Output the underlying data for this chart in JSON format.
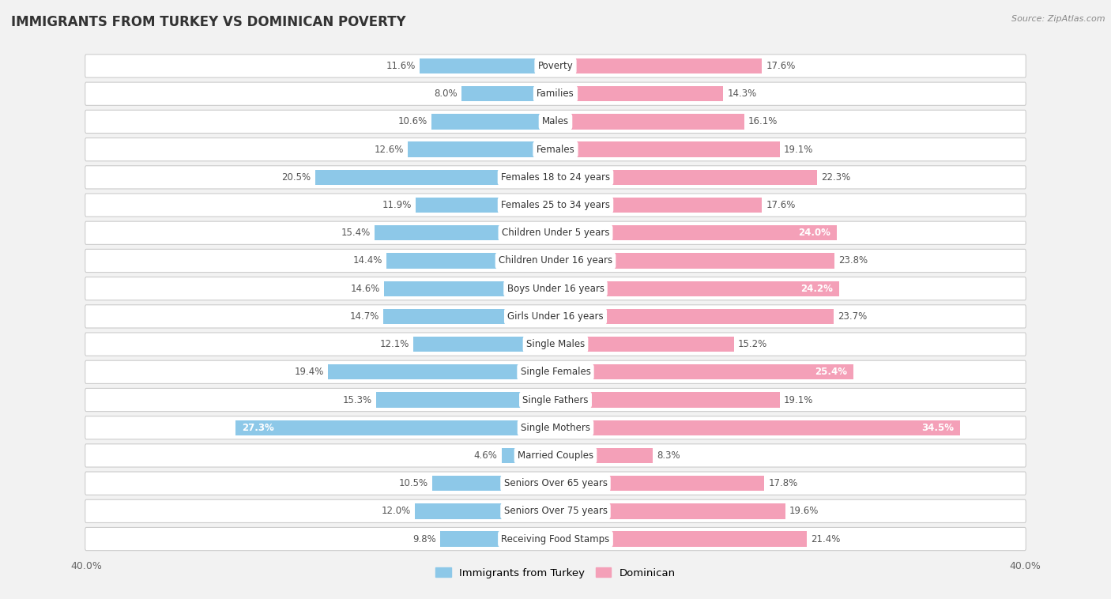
{
  "title": "IMMIGRANTS FROM TURKEY VS DOMINICAN POVERTY",
  "source": "Source: ZipAtlas.com",
  "categories": [
    "Poverty",
    "Families",
    "Males",
    "Females",
    "Females 18 to 24 years",
    "Females 25 to 34 years",
    "Children Under 5 years",
    "Children Under 16 years",
    "Boys Under 16 years",
    "Girls Under 16 years",
    "Single Males",
    "Single Females",
    "Single Fathers",
    "Single Mothers",
    "Married Couples",
    "Seniors Over 65 years",
    "Seniors Over 75 years",
    "Receiving Food Stamps"
  ],
  "turkey_values": [
    11.6,
    8.0,
    10.6,
    12.6,
    20.5,
    11.9,
    15.4,
    14.4,
    14.6,
    14.7,
    12.1,
    19.4,
    15.3,
    27.3,
    4.6,
    10.5,
    12.0,
    9.8
  ],
  "dominican_values": [
    17.6,
    14.3,
    16.1,
    19.1,
    22.3,
    17.6,
    24.0,
    23.8,
    24.2,
    23.7,
    15.2,
    25.4,
    19.1,
    34.5,
    8.3,
    17.8,
    19.6,
    21.4
  ],
  "turkey_color": "#8dc8e8",
  "dominican_color": "#f4a0b8",
  "turkey_label": "Immigrants from Turkey",
  "dominican_label": "Dominican",
  "background_color": "#f2f2f2",
  "row_color": "#ffffff",
  "row_border_color": "#dddddd",
  "axis_max": 40.0,
  "bar_height": 0.55,
  "label_fontsize": 8.5,
  "title_fontsize": 12,
  "category_fontsize": 8.5,
  "value_white_threshold_turkey": 22.0,
  "value_white_threshold_dominican": 24.0
}
